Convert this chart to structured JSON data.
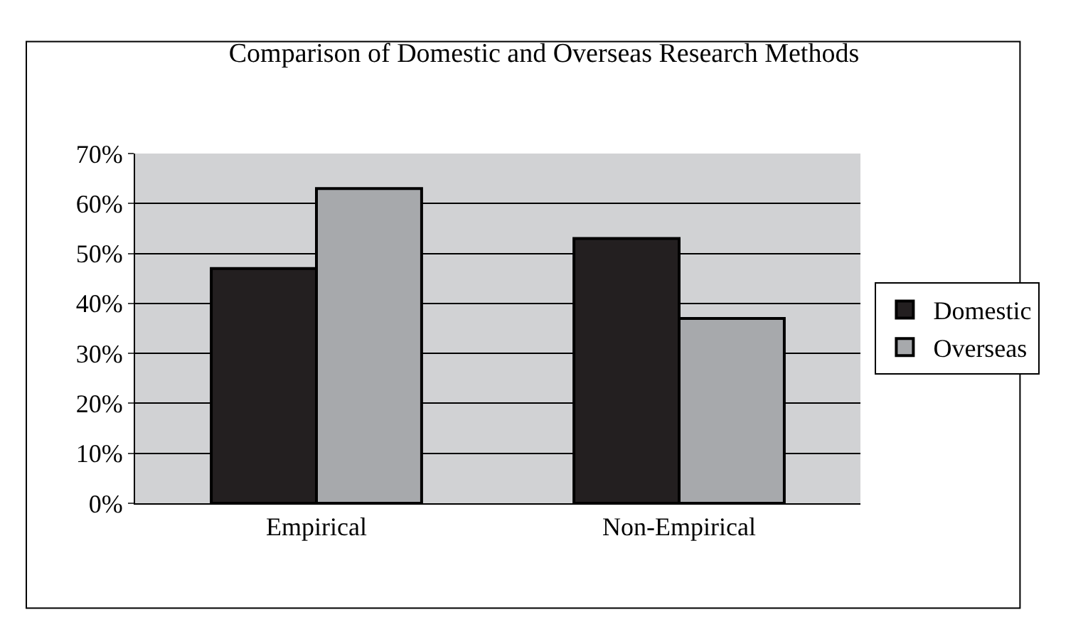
{
  "chart_data": {
    "type": "bar",
    "title": "Comparison of Domestic and Overseas Research Methods",
    "categories": [
      "Empirical",
      "Non-Empirical"
    ],
    "series": [
      {
        "name": "Domestic",
        "color": "#231f20",
        "values": [
          47,
          53
        ]
      },
      {
        "name": "Overseas",
        "color": "#a7a9ac",
        "values": [
          63,
          37
        ]
      }
    ],
    "ylim": [
      0,
      70
    ],
    "yticks": [
      {
        "value": 0,
        "label": "0%"
      },
      {
        "value": 10,
        "label": "10%"
      },
      {
        "value": 20,
        "label": "20%"
      },
      {
        "value": 30,
        "label": "30%"
      },
      {
        "value": 40,
        "label": "40%"
      },
      {
        "value": 50,
        "label": "50%"
      },
      {
        "value": 60,
        "label": "60%"
      },
      {
        "value": 70,
        "label": "70%"
      }
    ],
    "grid": "y",
    "legend": "right"
  }
}
